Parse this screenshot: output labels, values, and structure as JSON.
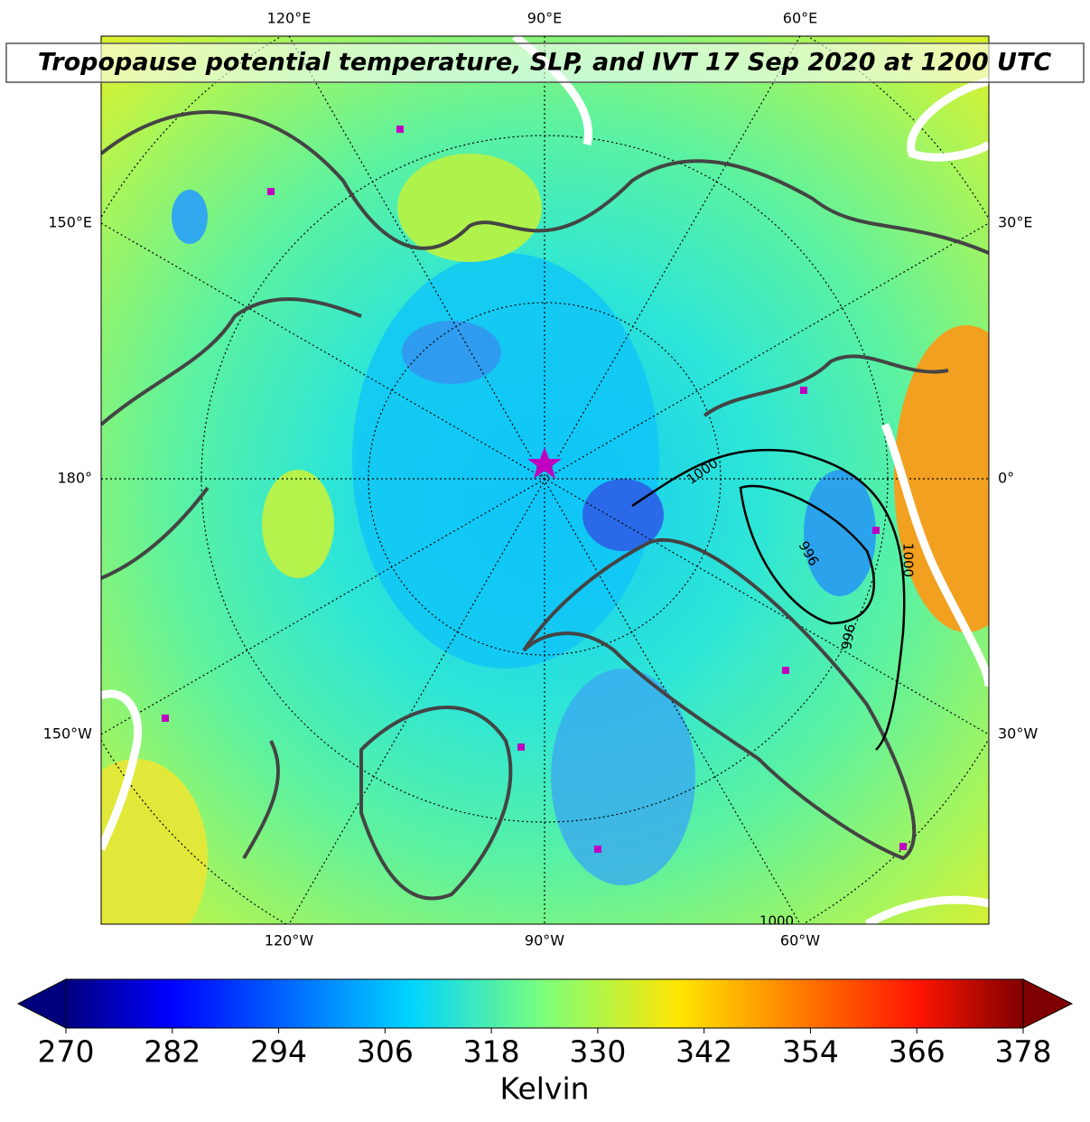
{
  "title": "Tropopause potential temperature, SLP, and IVT 17 Sep 2020 at 1200 UTC",
  "map": {
    "longitude_labels": {
      "top": [
        "120°E",
        "90°E",
        "60°E"
      ],
      "left": [
        "150°E",
        "180°",
        "150°W"
      ],
      "right": [
        "30°E",
        "0°",
        "30°W"
      ],
      "bottom": [
        "120°W",
        "90°W",
        "60°W"
      ]
    },
    "contour_labels": [
      "1000",
      "996",
      "1000",
      "996",
      "1000"
    ]
  },
  "colorbar": {
    "label": "Kelvin",
    "range": [
      270,
      378
    ],
    "ticks": [
      270,
      282,
      294,
      306,
      318,
      330,
      342,
      354,
      366,
      378
    ],
    "extend": "both"
  }
}
